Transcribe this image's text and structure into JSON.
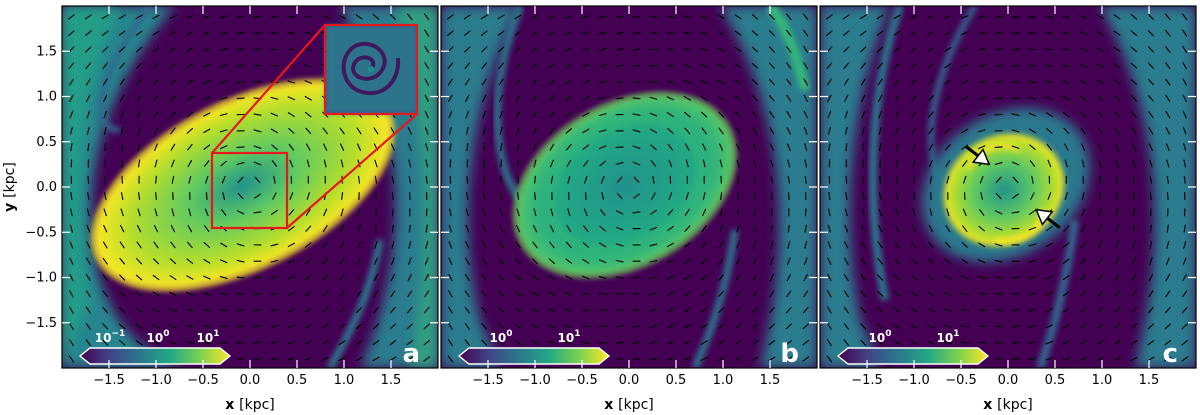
{
  "colors": {
    "background": "#440154",
    "low": "#3b528b",
    "mid": "#21918c",
    "high": "#5ec962",
    "peak": "#fde725",
    "zoom_box": "#e8171b",
    "arrows": "#000000"
  },
  "chart_data": [
    {
      "type": "heatmap",
      "panel_label": "a",
      "xlabel": "x",
      "xlabel_unit": "[kpc]",
      "ylabel": "y",
      "ylabel_unit": "[kpc]",
      "xlim": [
        -2.0,
        2.0
      ],
      "ylim": [
        -2.0,
        2.0
      ],
      "xticks": [
        "−1.5",
        "−1.0",
        "−0.5",
        "0.0",
        "0.5",
        "1.0",
        "1.5"
      ],
      "yticks": [
        "−1.5",
        "−1.0",
        "−0.5",
        "0.0",
        "0.5",
        "1.0",
        "1.5"
      ],
      "colorbar_ticks": [
        "10",
        "10",
        "10"
      ],
      "colorbar_exponents": [
        "−1",
        "0",
        "1"
      ],
      "colorbar_scale": "log",
      "inset_zoom": {
        "region_x": [
          -0.4,
          0.4
        ],
        "region_y": [
          -0.4,
          0.4
        ],
        "inset_x": [
          0.8,
          1.8
        ],
        "inset_y": [
          0.8,
          1.8
        ]
      }
    },
    {
      "type": "heatmap",
      "panel_label": "b",
      "xlabel": "x",
      "xlabel_unit": "[kpc]",
      "xlim": [
        -2.0,
        2.0
      ],
      "ylim": [
        -2.0,
        2.0
      ],
      "xticks": [
        "−1.5",
        "−1.0",
        "−0.5",
        "0.0",
        "0.5",
        "1.0",
        "1.5"
      ],
      "colorbar_ticks": [
        "10",
        "10"
      ],
      "colorbar_exponents": [
        "0",
        "1"
      ],
      "colorbar_scale": "log"
    },
    {
      "type": "heatmap",
      "panel_label": "c",
      "xlabel": "x",
      "xlabel_unit": "[kpc]",
      "xlim": [
        -2.0,
        2.0
      ],
      "ylim": [
        -2.0,
        2.0
      ],
      "xticks": [
        "−1.5",
        "−1.0",
        "−0.5",
        "0.0",
        "0.5",
        "1.0",
        "1.5"
      ],
      "colorbar_ticks": [
        "10",
        "10"
      ],
      "colorbar_exponents": [
        "0",
        "1"
      ],
      "colorbar_scale": "log",
      "annotation_arrows": [
        {
          "from": [
            -0.45,
            0.45
          ],
          "to": [
            -0.2,
            0.25
          ]
        },
        {
          "from": [
            0.55,
            -0.45
          ],
          "to": [
            0.3,
            -0.25
          ]
        }
      ]
    }
  ]
}
